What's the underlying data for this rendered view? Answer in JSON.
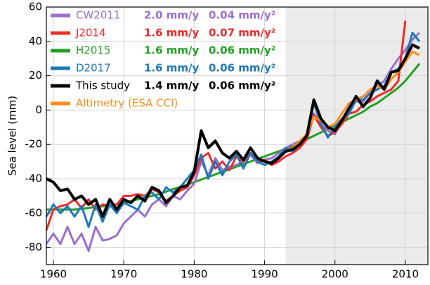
{
  "chart_data": {
    "type": "line",
    "ylabel": "Sea level (mm)",
    "x": [
      1959,
      1960,
      1961,
      1962,
      1963,
      1964,
      1965,
      1966,
      1967,
      1968,
      1969,
      1970,
      1971,
      1972,
      1973,
      1974,
      1975,
      1976,
      1977,
      1978,
      1979,
      1980,
      1981,
      1982,
      1983,
      1984,
      1985,
      1986,
      1987,
      1988,
      1989,
      1990,
      1991,
      1992,
      1993,
      1994,
      1995,
      1996,
      1997,
      1998,
      1999,
      2000,
      2001,
      2002,
      2003,
      2004,
      2005,
      2006,
      2007,
      2008,
      2009,
      2010,
      2011,
      2012
    ],
    "xlim": [
      1959,
      2013.2
    ],
    "xticks": [
      1960,
      1970,
      1980,
      1990,
      2000,
      2010
    ],
    "ylim": [
      -90,
      60
    ],
    "yticks": [
      -80,
      -60,
      -40,
      -20,
      0,
      20,
      40,
      60
    ],
    "grid": true,
    "legend": "upper left",
    "shaded_span": [
      1993,
      2013.2
    ],
    "series": [
      {
        "name": "CW2011",
        "color": "#9b6fce",
        "rate": "2.0 mm/y",
        "acceleration": "0.04 mm/y²",
        "values": [
          -78,
          -72,
          -78,
          -68,
          -78,
          -72,
          -82,
          -68,
          -76,
          -75,
          -73,
          -66,
          -62,
          -58,
          -62,
          -55,
          -52,
          -56,
          -50,
          -52,
          -47,
          -43,
          -30,
          -38,
          -28,
          -35,
          -33,
          -32,
          -30,
          -26,
          -31,
          -29,
          -28,
          -25,
          -22,
          -20,
          -18,
          -14,
          -2,
          -8,
          -12,
          -14,
          -6,
          2,
          5,
          5,
          10,
          14,
          17,
          24,
          30,
          35,
          41,
          45
        ]
      },
      {
        "name": "J2014",
        "color": "#ee2b2b",
        "rate": "1.6 mm/y",
        "acceleration": "0.07 mm/y²",
        "values": [
          -70,
          -58,
          -56,
          -55,
          -52,
          -57,
          -52,
          -58,
          -55,
          -56,
          -55,
          -50,
          -50,
          -49,
          -50,
          -46,
          -48,
          -53,
          -50,
          -47,
          -45,
          -38,
          -28,
          -25,
          -34,
          -30,
          -35,
          -27,
          -30,
          -25,
          -30,
          -29,
          -32,
          -30,
          -27,
          -25,
          -22,
          -17,
          -3,
          -10,
          -15,
          -13,
          -8,
          -2,
          -1,
          3,
          5,
          8,
          10,
          12,
          17,
          52,
          null,
          null
        ]
      },
      {
        "name": "H2015",
        "color": "#22a022",
        "rate": "1.6 mm/y",
        "acceleration": "0.06 mm/y²",
        "values": [
          -58,
          -58,
          -58,
          -58,
          -58,
          -57.5,
          -57,
          -56.5,
          -56,
          -55.5,
          -55,
          -54,
          -53,
          -52,
          -51,
          -50,
          -49,
          -47.5,
          -46,
          -45,
          -43.5,
          -42,
          -40.5,
          -39,
          -37.5,
          -36,
          -34.5,
          -33,
          -31.5,
          -30,
          -28.5,
          -27,
          -25.5,
          -24,
          -22.5,
          -21,
          -19,
          -17,
          -15,
          -13,
          -11,
          -9,
          -7,
          -5,
          -3,
          -1,
          2,
          4,
          7,
          10,
          13,
          17,
          22,
          27
        ]
      },
      {
        "name": "D2017",
        "color": "#1f78b8",
        "rate": "1.6 mm/y",
        "acceleration": "0.06 mm/y²",
        "values": [
          -62,
          -55,
          -60,
          -56,
          -62,
          -56,
          -68,
          -55,
          -65,
          -55,
          -60,
          -54,
          -56,
          -58,
          -50,
          -48,
          -52,
          -45,
          -48,
          -45,
          -40,
          -35,
          -26,
          -40,
          -30,
          -38,
          -30,
          -26,
          -34,
          -25,
          -30,
          -32,
          -30,
          -27,
          -22,
          -24,
          -20,
          -15,
          4,
          -8,
          -16,
          -10,
          -5,
          -2,
          6,
          6,
          10,
          12,
          14,
          22,
          24,
          30,
          45,
          40
        ]
      },
      {
        "name": "This study",
        "color": "#000000",
        "rate": "1.4 mm/y",
        "acceleration": "0.06 mm/y²",
        "values": [
          -40,
          -42,
          -47,
          -46,
          -52,
          -50,
          -55,
          -52,
          -62,
          -52,
          -58,
          -52,
          -54,
          -50,
          -53,
          -45,
          -47,
          -54,
          -50,
          -45,
          -44,
          -36,
          -12,
          -22,
          -18,
          -25,
          -28,
          -24,
          -29,
          -22,
          -28,
          -30,
          -31,
          -28,
          -24,
          -23,
          -20,
          -15,
          6,
          -5,
          -10,
          -12,
          -6,
          1,
          8,
          2,
          7,
          17,
          12,
          22,
          23,
          30,
          38,
          36
        ]
      },
      {
        "name": "Altimetry (ESA CCI)",
        "color": "#ff8c1a",
        "values": [
          null,
          null,
          null,
          null,
          null,
          null,
          null,
          null,
          null,
          null,
          null,
          null,
          null,
          null,
          null,
          null,
          null,
          null,
          null,
          null,
          null,
          null,
          null,
          null,
          null,
          null,
          null,
          null,
          null,
          null,
          null,
          null,
          null,
          null,
          -24,
          -22,
          -18,
          -14,
          -4,
          -6,
          -10,
          -8,
          -2,
          4,
          6,
          8,
          12,
          14,
          12,
          18,
          22,
          28,
          34,
          32
        ]
      }
    ]
  }
}
